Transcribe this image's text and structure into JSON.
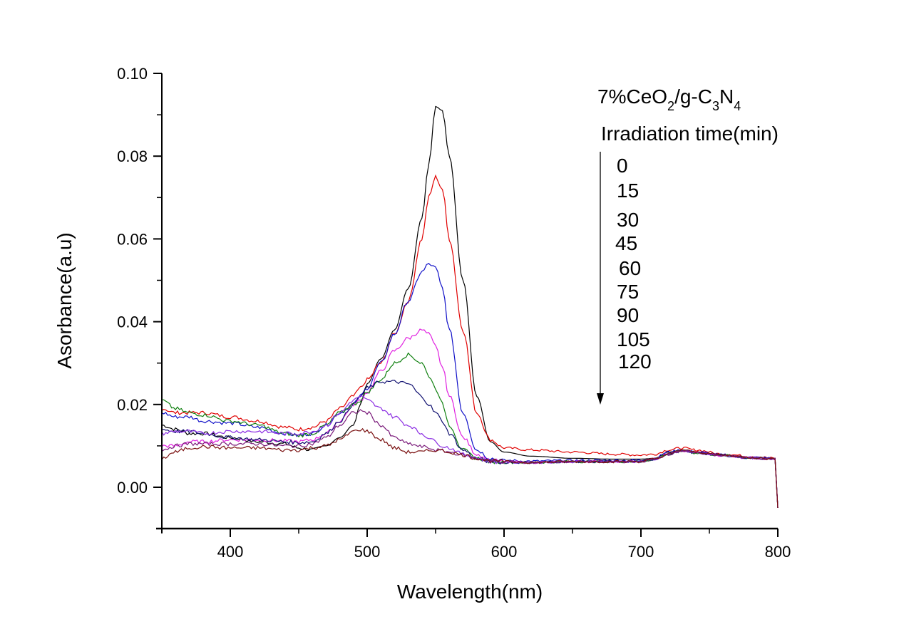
{
  "chart_data": {
    "type": "line",
    "title": "",
    "xlabel": "Wavelength(nm)",
    "ylabel": "Asorbance(a.u)",
    "xlim": [
      350,
      800
    ],
    "ylim": [
      -0.01,
      0.1
    ],
    "xticks": [
      400,
      500,
      600,
      700,
      800
    ],
    "xtick_labels": [
      "400",
      "500",
      "600",
      "700",
      "800"
    ],
    "yticks": [
      0.0,
      0.02,
      0.04,
      0.06,
      0.08,
      0.1
    ],
    "ytick_labels": [
      "0.00",
      "0.02",
      "0.04",
      "0.06",
      "0.08",
      "0.10"
    ],
    "grid": false,
    "annotation": {
      "sample_prefix": "7%CeO",
      "sample_sub1": "2",
      "sample_mid": "/g-C",
      "sample_sub2": "3",
      "sample_mid2": "N",
      "sample_sub3": "4",
      "legend_title": "Irradiation time(min)",
      "arrow": "down",
      "legend_placement": "top-right"
    },
    "x": [
      350,
      360,
      370,
      380,
      400,
      420,
      440,
      450,
      460,
      470,
      480,
      490,
      495,
      500,
      510,
      520,
      530,
      540,
      545,
      550,
      555,
      560,
      570,
      580,
      590,
      600,
      620,
      650,
      680,
      700,
      710,
      720,
      730,
      740,
      760,
      780,
      798,
      800
    ],
    "series": [
      {
        "name": "0",
        "color": "#000000",
        "values": [
          0.015,
          0.014,
          0.013,
          0.013,
          0.012,
          0.011,
          0.0105,
          0.0095,
          0.009,
          0.01,
          0.012,
          0.015,
          0.02,
          0.025,
          0.031,
          0.038,
          0.048,
          0.065,
          0.078,
          0.092,
          0.091,
          0.08,
          0.05,
          0.022,
          0.011,
          0.0085,
          0.0075,
          0.007,
          0.0068,
          0.0068,
          0.007,
          0.0085,
          0.009,
          0.0085,
          0.0078,
          0.0072,
          0.007,
          -0.005
        ]
      },
      {
        "name": "15",
        "color": "#e00000",
        "values": [
          0.019,
          0.018,
          0.018,
          0.018,
          0.017,
          0.016,
          0.0145,
          0.014,
          0.0145,
          0.016,
          0.019,
          0.022,
          0.024,
          0.026,
          0.03,
          0.037,
          0.045,
          0.06,
          0.07,
          0.075,
          0.072,
          0.06,
          0.038,
          0.018,
          0.0115,
          0.0095,
          0.009,
          0.0085,
          0.008,
          0.0078,
          0.008,
          0.009,
          0.0095,
          0.009,
          0.008,
          0.0075,
          0.007,
          -0.005
        ]
      },
      {
        "name": "30",
        "color": "#1010c8",
        "values": [
          0.018,
          0.017,
          0.017,
          0.016,
          0.0155,
          0.0145,
          0.013,
          0.0125,
          0.013,
          0.015,
          0.018,
          0.02,
          0.022,
          0.024,
          0.03,
          0.037,
          0.045,
          0.052,
          0.054,
          0.053,
          0.048,
          0.038,
          0.018,
          0.009,
          0.007,
          0.0065,
          0.0063,
          0.0065,
          0.0065,
          0.0065,
          0.007,
          0.0085,
          0.009,
          0.0085,
          0.0078,
          0.0072,
          0.007,
          -0.005
        ]
      },
      {
        "name": "45",
        "color": "#e020e0",
        "values": [
          0.01,
          0.01,
          0.011,
          0.011,
          0.0115,
          0.0115,
          0.0112,
          0.011,
          0.0115,
          0.013,
          0.016,
          0.02,
          0.021,
          0.023,
          0.028,
          0.033,
          0.036,
          0.038,
          0.037,
          0.034,
          0.029,
          0.022,
          0.012,
          0.008,
          0.0065,
          0.0062,
          0.006,
          0.0062,
          0.0062,
          0.0062,
          0.0068,
          0.008,
          0.0088,
          0.0083,
          0.0077,
          0.0071,
          0.0068,
          -0.005
        ]
      },
      {
        "name": "60",
        "color": "#108010",
        "values": [
          0.021,
          0.019,
          0.018,
          0.0175,
          0.016,
          0.015,
          0.013,
          0.0125,
          0.013,
          0.015,
          0.018,
          0.02,
          0.021,
          0.023,
          0.026,
          0.03,
          0.032,
          0.03,
          0.027,
          0.024,
          0.02,
          0.015,
          0.009,
          0.007,
          0.0062,
          0.006,
          0.006,
          0.0062,
          0.0062,
          0.0062,
          0.0068,
          0.008,
          0.0088,
          0.0083,
          0.0077,
          0.0071,
          0.0068,
          -0.005
        ]
      },
      {
        "name": "75",
        "color": "#101070",
        "values": [
          0.014,
          0.0135,
          0.0135,
          0.013,
          0.012,
          0.0115,
          0.011,
          0.0108,
          0.011,
          0.013,
          0.016,
          0.02,
          0.022,
          0.024,
          0.0255,
          0.0255,
          0.025,
          0.022,
          0.02,
          0.018,
          0.016,
          0.013,
          0.009,
          0.007,
          0.0062,
          0.006,
          0.006,
          0.0062,
          0.0062,
          0.0062,
          0.0068,
          0.008,
          0.0088,
          0.0083,
          0.0077,
          0.0071,
          0.0068,
          -0.005
        ]
      },
      {
        "name": "90",
        "color": "#8a2be2",
        "values": [
          0.013,
          0.0135,
          0.0135,
          0.013,
          0.0135,
          0.0135,
          0.013,
          0.013,
          0.0135,
          0.015,
          0.018,
          0.021,
          0.022,
          0.021,
          0.019,
          0.017,
          0.015,
          0.013,
          0.012,
          0.011,
          0.01,
          0.0095,
          0.008,
          0.007,
          0.0062,
          0.006,
          0.006,
          0.0062,
          0.0062,
          0.0062,
          0.0068,
          0.008,
          0.0088,
          0.0083,
          0.0077,
          0.0071,
          0.0068,
          -0.005
        ]
      },
      {
        "name": "105",
        "color": "#7a1a7a",
        "values": [
          0.009,
          0.01,
          0.0105,
          0.0105,
          0.0105,
          0.0105,
          0.01,
          0.01,
          0.0105,
          0.012,
          0.015,
          0.018,
          0.0185,
          0.018,
          0.015,
          0.012,
          0.0105,
          0.0098,
          0.0095,
          0.009,
          0.0088,
          0.0085,
          0.0078,
          0.007,
          0.0064,
          0.0062,
          0.006,
          0.0062,
          0.0062,
          0.0062,
          0.0068,
          0.008,
          0.0088,
          0.0083,
          0.0077,
          0.0071,
          0.0068,
          -0.005
        ]
      },
      {
        "name": "120",
        "color": "#7a1010",
        "values": [
          0.007,
          0.0085,
          0.0095,
          0.0098,
          0.0095,
          0.0095,
          0.009,
          0.009,
          0.0095,
          0.01,
          0.0115,
          0.0135,
          0.014,
          0.0135,
          0.0115,
          0.0095,
          0.0085,
          0.0085,
          0.0088,
          0.009,
          0.0088,
          0.0085,
          0.0078,
          0.007,
          0.0064,
          0.0062,
          0.006,
          0.0062,
          0.0062,
          0.0062,
          0.0068,
          0.008,
          0.009,
          0.0085,
          0.0078,
          0.0072,
          0.0068,
          -0.005
        ]
      }
    ]
  }
}
